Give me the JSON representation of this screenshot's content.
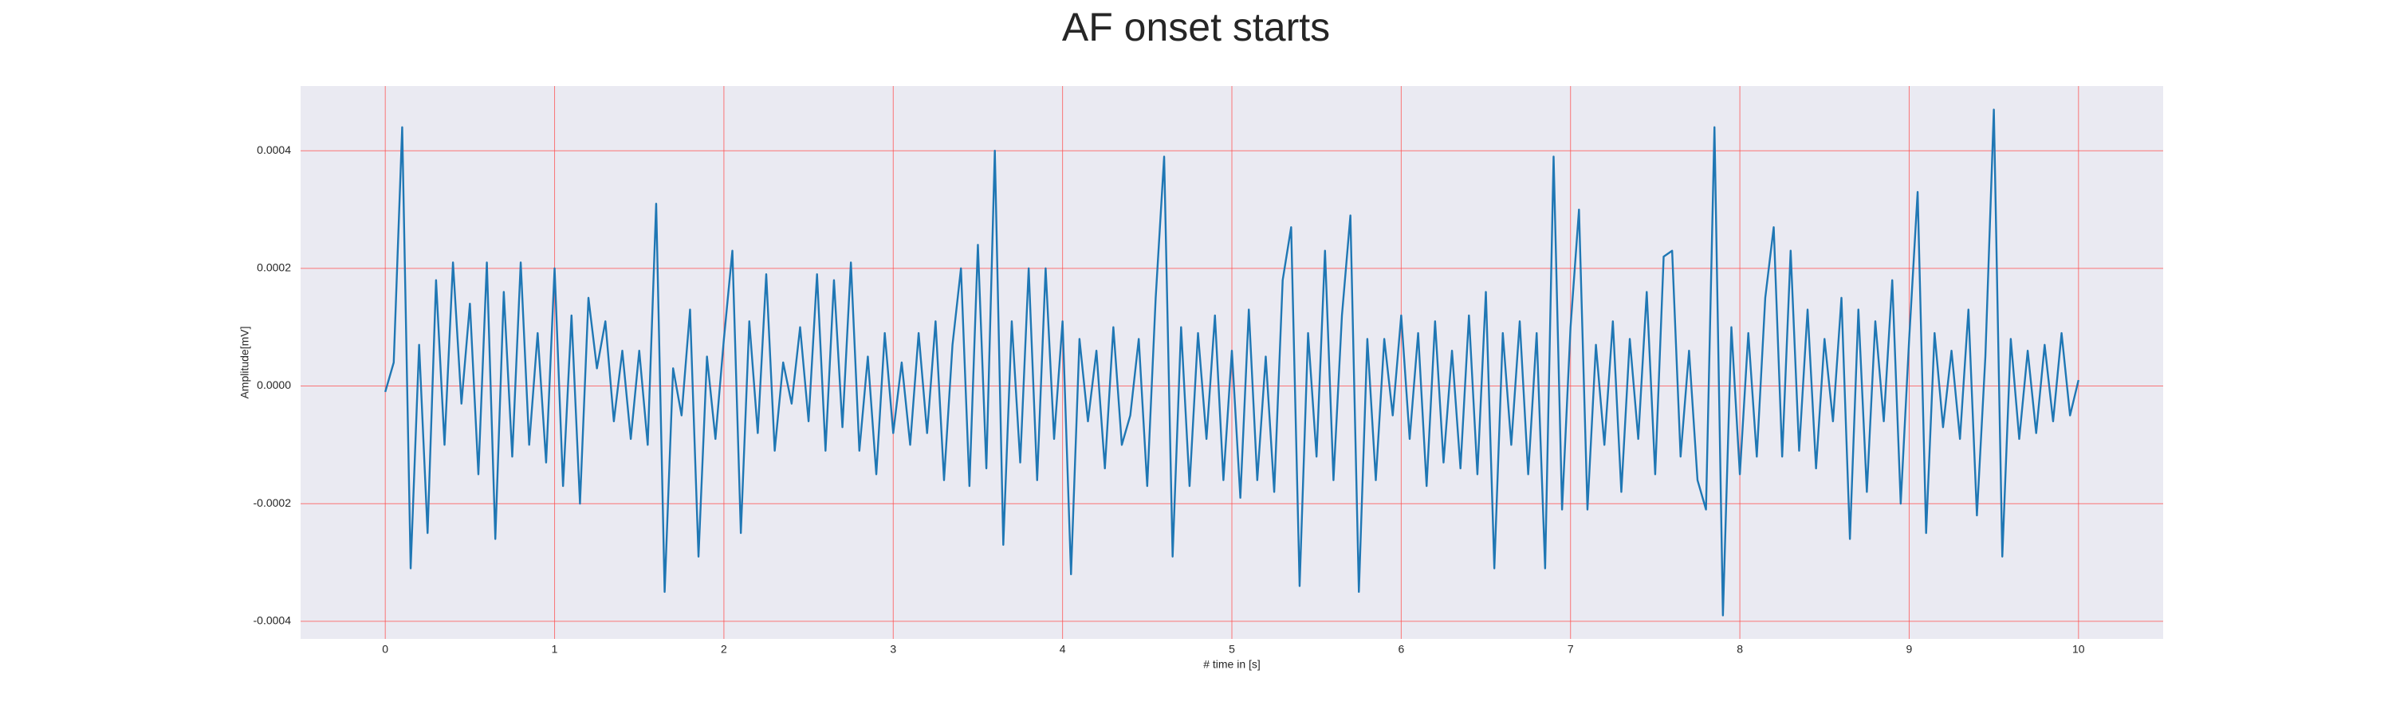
{
  "chart_data": {
    "type": "line",
    "title": "AF onset starts",
    "xlabel": "# time in [s]",
    "ylabel": "Amplitude[mV]",
    "color": "#1f77b4",
    "grid": true,
    "xlim": [
      -0.5,
      10.5
    ],
    "ylim": [
      -0.00043,
      0.00051
    ],
    "xticks": [
      0,
      1,
      2,
      3,
      4,
      5,
      6,
      7,
      8,
      9,
      10
    ],
    "yticks": [
      -0.0004,
      -0.0002,
      {
        "value": 0,
        "label": "0.0000"
      },
      0.0002,
      0.0004
    ],
    "x": [
      0,
      0.05,
      0.1,
      0.15,
      0.2,
      0.25,
      0.3,
      0.35,
      0.4,
      0.45,
      0.5,
      0.55,
      0.6,
      0.65,
      0.7,
      0.75,
      0.8,
      0.85,
      0.9,
      0.95,
      1,
      1.05,
      1.1,
      1.15,
      1.2,
      1.25,
      1.3,
      1.35,
      1.4,
      1.45,
      1.5,
      1.55,
      1.6,
      1.65,
      1.7,
      1.75,
      1.8,
      1.85,
      1.9,
      1.95,
      2,
      2.05,
      2.1,
      2.15,
      2.2,
      2.25,
      2.3,
      2.35,
      2.4,
      2.45,
      2.5,
      2.55,
      2.6,
      2.65,
      2.7,
      2.75,
      2.8,
      2.85,
      2.9,
      2.95,
      3,
      3.05,
      3.1,
      3.15,
      3.2,
      3.25,
      3.3,
      3.35,
      3.4,
      3.45,
      3.5,
      3.55,
      3.6,
      3.65,
      3.7,
      3.75,
      3.8,
      3.85,
      3.9,
      3.95,
      4,
      4.05,
      4.1,
      4.15,
      4.2,
      4.25,
      4.3,
      4.35,
      4.4,
      4.45,
      4.5,
      4.55,
      4.6,
      4.65,
      4.7,
      4.75,
      4.8,
      4.85,
      4.9,
      4.95,
      5,
      5.05,
      5.1,
      5.15,
      5.2,
      5.25,
      5.3,
      5.35,
      5.4,
      5.45,
      5.5,
      5.55,
      5.6,
      5.65,
      5.7,
      5.75,
      5.8,
      5.85,
      5.9,
      5.95,
      6,
      6.05,
      6.1,
      6.15,
      6.2,
      6.25,
      6.3,
      6.35,
      6.4,
      6.45,
      6.5,
      6.55,
      6.6,
      6.65,
      6.7,
      6.75,
      6.8,
      6.85,
      6.9,
      6.95,
      7,
      7.05,
      7.1,
      7.15,
      7.2,
      7.25,
      7.3,
      7.35,
      7.4,
      7.45,
      7.5,
      7.55,
      7.6,
      7.65,
      7.7,
      7.75,
      7.8,
      7.85,
      7.9,
      7.95,
      8,
      8.05,
      8.1,
      8.15,
      8.2,
      8.25,
      8.3,
      8.35,
      8.4,
      8.45,
      8.5,
      8.55,
      8.6,
      8.65,
      8.7,
      8.75,
      8.8,
      8.85,
      8.9,
      8.95,
      9,
      9.05,
      9.1,
      9.15,
      9.2,
      9.25,
      9.3,
      9.35,
      9.4,
      9.45,
      9.5,
      9.55,
      9.6,
      9.65,
      9.7,
      9.75,
      9.8,
      9.85,
      9.9,
      9.95,
      10
    ],
    "values": [
      -1e-05,
      4e-05,
      0.00044,
      -0.00031,
      7e-05,
      -0.00025,
      0.00018,
      -0.0001,
      0.00021,
      -3e-05,
      0.00014,
      -0.00015,
      0.00021,
      -0.00026,
      0.00016,
      -0.00012,
      0.00021,
      -0.0001,
      9e-05,
      -0.00013,
      0.0002,
      -0.00017,
      0.00012,
      -0.0002,
      0.00015,
      3e-05,
      0.00011,
      -6e-05,
      6e-05,
      -9e-05,
      6e-05,
      -0.0001,
      0.00031,
      -0.00035,
      3e-05,
      -5e-05,
      0.00013,
      -0.00029,
      5e-05,
      -9e-05,
      8e-05,
      0.00023,
      -0.00025,
      0.00011,
      -8e-05,
      0.00019,
      -0.00011,
      4e-05,
      -3e-05,
      0.0001,
      -6e-05,
      0.00019,
      -0.00011,
      0.00018,
      -7e-05,
      0.00021,
      -0.00011,
      5e-05,
      -0.00015,
      9e-05,
      -8e-05,
      4e-05,
      -0.0001,
      9e-05,
      -8e-05,
      0.00011,
      -0.00016,
      7e-05,
      0.0002,
      -0.00017,
      0.00024,
      -0.00014,
      0.0004,
      -0.00027,
      0.00011,
      -0.00013,
      0.0002,
      -0.00016,
      0.0002,
      -9e-05,
      0.00011,
      -0.00032,
      8e-05,
      -6e-05,
      6e-05,
      -0.00014,
      0.0001,
      -0.0001,
      -5e-05,
      8e-05,
      -0.00017,
      0.00015,
      0.00039,
      -0.00029,
      0.0001,
      -0.00017,
      9e-05,
      -9e-05,
      0.00012,
      -0.00016,
      6e-05,
      -0.00019,
      0.00013,
      -0.00016,
      5e-05,
      -0.00018,
      0.00018,
      0.00027,
      -0.00034,
      9e-05,
      -0.00012,
      0.00023,
      -0.00016,
      0.00012,
      0.00029,
      -0.00035,
      8e-05,
      -0.00016,
      8e-05,
      -5e-05,
      0.00012,
      -9e-05,
      9e-05,
      -0.00017,
      0.00011,
      -0.00013,
      6e-05,
      -0.00014,
      0.00012,
      -0.00015,
      0.00016,
      -0.00031,
      9e-05,
      -0.0001,
      0.00011,
      -0.00015,
      9e-05,
      -0.00031,
      0.00039,
      -0.00021,
      0.0001,
      0.0003,
      -0.00021,
      7e-05,
      -0.0001,
      0.00011,
      -0.00018,
      8e-05,
      -9e-05,
      0.00016,
      -0.00015,
      0.00022,
      0.00023,
      -0.00012,
      6e-05,
      -0.00016,
      -0.00021,
      0.00044,
      -0.00039,
      0.0001,
      -0.00015,
      9e-05,
      -0.00012,
      0.00015,
      0.00027,
      -0.00012,
      0.00023,
      -0.00011,
      0.00013,
      -0.00014,
      8e-05,
      -6e-05,
      0.00015,
      -0.00026,
      0.00013,
      -0.00018,
      0.00011,
      -6e-05,
      0.00018,
      -0.0002,
      8e-05,
      0.00033,
      -0.00025,
      9e-05,
      -7e-05,
      6e-05,
      -9e-05,
      0.00013,
      -0.00022,
      5e-05,
      0.00047,
      -0.00029,
      8e-05,
      -9e-05,
      6e-05,
      -8e-05,
      7e-05,
      -6e-05,
      9e-05,
      -5e-05,
      1e-05
    ]
  }
}
